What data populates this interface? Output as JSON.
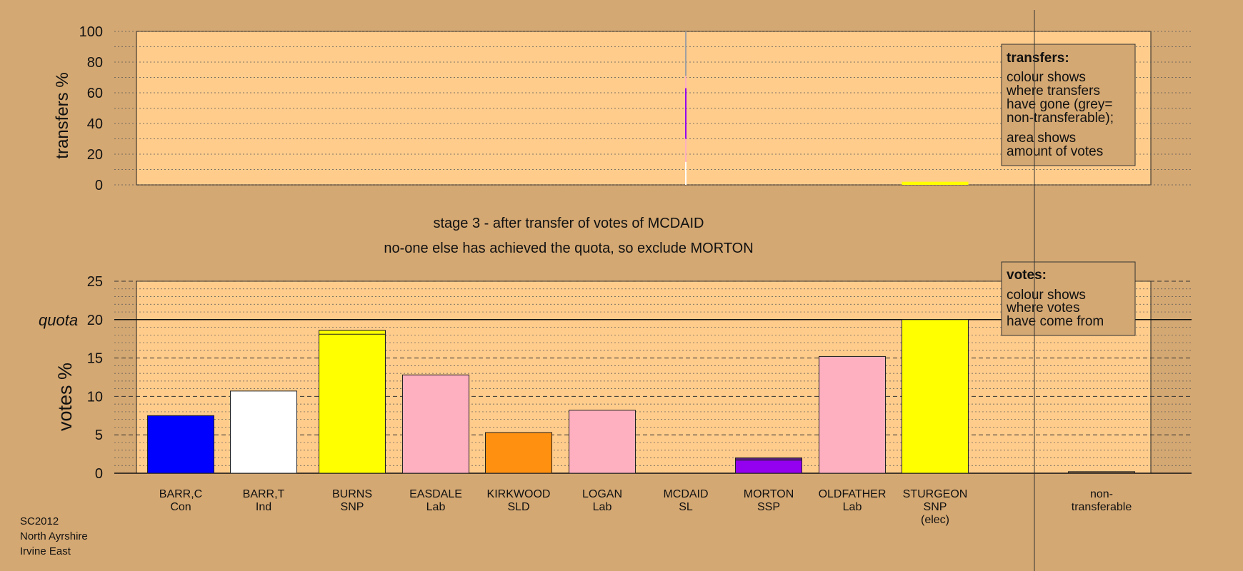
{
  "stage_title": "stage 3 - after transfer of votes of MCDAID",
  "stage_subtitle": "no-one else has achieved the quota, so exclude MORTON",
  "footer": [
    "SC2012",
    "North Ayrshire",
    "Irvine East"
  ],
  "colors": {
    "background": "#d4a873",
    "plot_area": "#ffcc8c",
    "grid": "#333333",
    "con": "#0000ff",
    "ind": "#ffffff",
    "snp": "#ffff00",
    "lab": "#ffb0c0",
    "sld": "#ff9010",
    "ssp": "#9400f0",
    "sl": "#a0a0a0",
    "non_transferable": "#7a5a3a"
  },
  "top_legend": {
    "title": "transfers:",
    "lines1": [
      "colour shows",
      "where transfers",
      "have gone (grey=",
      "non-transferable);"
    ],
    "lines2": [
      "area shows",
      "amount of votes"
    ]
  },
  "bottom_legend": {
    "title": "votes:",
    "lines1": [
      "colour shows",
      "where votes",
      "have come from"
    ]
  },
  "chart_data": [
    {
      "type": "bar",
      "ylabel": "transfers %",
      "ylim": [
        0,
        100
      ],
      "yticks": [
        0,
        20,
        40,
        60,
        80,
        100
      ],
      "categories": [
        "BARR,C",
        "BARR,T",
        "BURNS",
        "EASDALE",
        "KIRKWOOD",
        "LOGAN",
        "MCDAID",
        "MORTON",
        "OLDFATHER",
        "STURGEON"
      ],
      "transfer_source": "MCDAID",
      "transfer_breakdown": [
        {
          "to": "BARR,T",
          "color": "#ffffff",
          "from": 0,
          "to_pct": 15
        },
        {
          "to": "EASDALE",
          "color": "#ffb0c0",
          "from": 15,
          "to_pct": 30
        },
        {
          "to": "MORTON",
          "color": "#9400f0",
          "from": 30,
          "to_pct": 63
        },
        {
          "to": "OLDFATHER",
          "color": "#ffb0c0",
          "from": 63,
          "to_pct": 71
        },
        {
          "to": "non-transferable",
          "color": "#a0a0a0",
          "from": 71,
          "to_pct": 100
        }
      ],
      "surplus_marker": {
        "candidate": "STURGEON",
        "value": 2,
        "color": "#ffff00"
      }
    },
    {
      "type": "bar",
      "ylabel": "votes %",
      "ylim": [
        0,
        25
      ],
      "yticks": [
        0,
        5,
        10,
        15,
        20,
        25
      ],
      "quota_label": "quota",
      "quota": 20,
      "categories": [
        "BARR,C",
        "BARR,T",
        "BURNS",
        "EASDALE",
        "KIRKWOOD",
        "LOGAN",
        "MCDAID",
        "MORTON",
        "OLDFATHER",
        "STURGEON",
        "non-transferable"
      ],
      "parties": [
        "Con",
        "Ind",
        "SNP",
        "Lab",
        "SLD",
        "Lab",
        "SL",
        "SSP",
        "Lab",
        "SNP",
        ""
      ],
      "elected": [
        "",
        "",
        "",
        "",
        "",
        "",
        "",
        "",
        "",
        "(elec)",
        ""
      ],
      "values": [
        7.5,
        10.7,
        18.6,
        12.8,
        5.3,
        8.2,
        0,
        2.0,
        15.2,
        20.0,
        0.2
      ],
      "bar_colors": [
        "#0000ff",
        "#ffffff",
        "#ffff00",
        "#ffb0c0",
        "#ff9010",
        "#ffb0c0",
        "#a0a0a0",
        "#9400f0",
        "#ffb0c0",
        "#ffff00",
        "#7a5a3a"
      ]
    }
  ]
}
